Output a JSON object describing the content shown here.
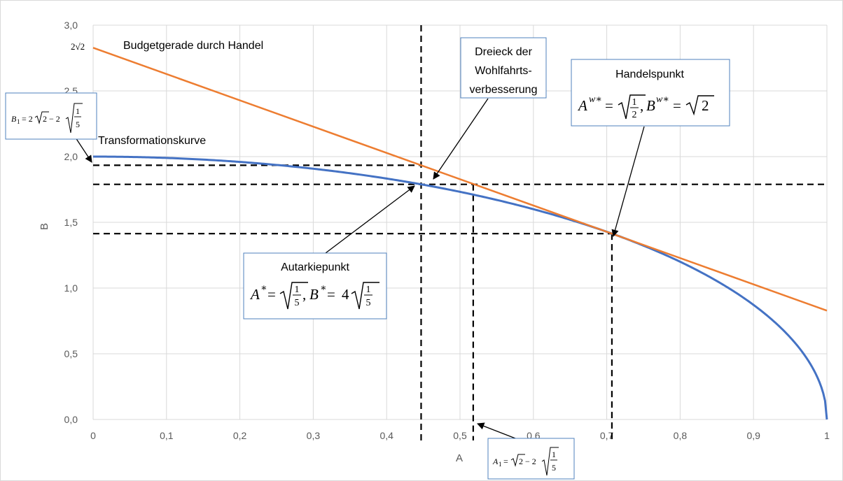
{
  "chart_data": {
    "type": "line",
    "xlabel": "A",
    "ylabel": "B",
    "xlim": [
      0,
      1
    ],
    "ylim": [
      0,
      3
    ],
    "x_ticks": [
      "0",
      "0,1",
      "0,2",
      "0,3",
      "0,4",
      "0,5",
      "0,6",
      "0,7",
      "0,8",
      "0,9",
      "1"
    ],
    "y_ticks": [
      "0,0",
      "0,5",
      "1,0",
      "1,5",
      "2,0",
      "2,5",
      "3,0"
    ],
    "grid": true,
    "series": [
      {
        "name": "Transformationskurve",
        "color": "#4472c4",
        "function": "B = 2*sqrt(1 - A^2)",
        "x": [
          0,
          0.1,
          0.2,
          0.3,
          0.4,
          0.447,
          0.5,
          0.6,
          0.7,
          0.8,
          0.9,
          0.95,
          0.98,
          1
        ],
        "y": [
          2.0,
          1.99,
          1.96,
          1.91,
          1.83,
          1.789,
          1.732,
          1.6,
          1.428,
          1.2,
          0.872,
          0.624,
          0.398,
          0.0
        ]
      },
      {
        "name": "Budgetgerade durch Handel",
        "color": "#ed7d31",
        "function": "B = 2*sqrt(2) - 2*A",
        "x": [
          0,
          1
        ],
        "y": [
          2.828,
          0.828
        ]
      }
    ],
    "reference_lines": {
      "vertical": [
        0.447,
        0.518,
        0.707
      ],
      "horizontal": [
        1.934,
        1.789,
        1.414
      ]
    },
    "annotations": {
      "y_label_2sqrt2": "2√2",
      "budget_label": "Budgetgerade durch Handel",
      "transformation_label": "Transformationskurve",
      "dreieck_line1": "Dreieck der",
      "dreieck_line2": "Wohlfahrts-",
      "dreieck_line3": "verbesserung",
      "handel_title": "Handelspunkt",
      "autarkie_title": "Autarkiepunkt"
    }
  }
}
